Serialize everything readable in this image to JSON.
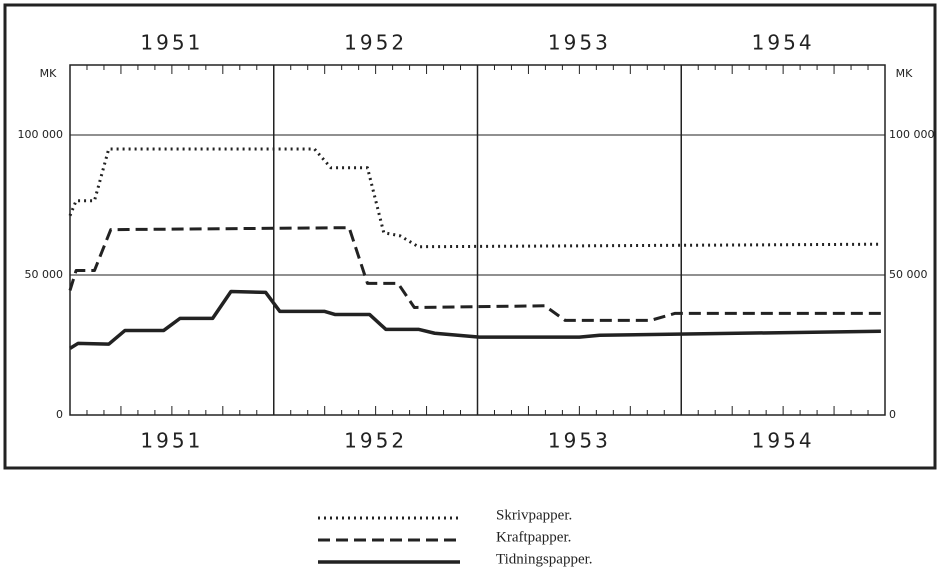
{
  "chart_data": {
    "type": "line",
    "ylabel": "MK",
    "y2label": "MK",
    "xlim": [
      1951,
      1955
    ],
    "xticks": [
      {
        "value": 1951.5,
        "label": "1951"
      },
      {
        "value": 1952.5,
        "label": "1952"
      },
      {
        "value": 1953.5,
        "label": "1953"
      },
      {
        "value": 1954.5,
        "label": "1954"
      }
    ],
    "x_dividers": [
      1952,
      1953,
      1954
    ],
    "ylim": [
      0,
      125000
    ],
    "yticks": [
      0,
      {
        "value": 50000,
        "label": "50 000"
      },
      {
        "value": 100000,
        "label": "100 000"
      }
    ],
    "y2lim": [
      0,
      125000
    ],
    "y2ticks": [
      0,
      {
        "value": 50000,
        "label": "50 000"
      },
      {
        "value": 100000,
        "label": "100 000"
      }
    ],
    "grid": true,
    "legend": "bottom",
    "series": [
      {
        "name": "Skrivpapper.",
        "color": "#222",
        "style": "dotted",
        "x": [
          1951.0,
          1951.03,
          1951.12,
          1951.19,
          1952.2,
          1952.28,
          1952.46,
          1952.54,
          1952.62,
          1952.71,
          1954.98
        ],
        "values": [
          71200,
          76500,
          76500,
          95000,
          95000,
          88300,
          88300,
          65100,
          64000,
          60100,
          61000
        ]
      },
      {
        "name": "Kraftpapper.",
        "color": "#222",
        "style": "dashed",
        "x": [
          1951.0,
          1951.03,
          1951.12,
          1951.2,
          1952.37,
          1952.46,
          1952.61,
          1952.69,
          1953.33,
          1953.43,
          1953.85,
          1953.97,
          1955.0
        ],
        "values": [
          44500,
          51600,
          51600,
          66200,
          66900,
          47000,
          47000,
          38400,
          39000,
          33800,
          33800,
          36300,
          36300
        ]
      },
      {
        "name": "Tidningspapper.",
        "color": "#222",
        "style": "solid",
        "x": [
          1951.0,
          1951.04,
          1951.19,
          1951.27,
          1951.46,
          1951.54,
          1951.7,
          1951.79,
          1951.96,
          1952.03,
          1952.25,
          1952.3,
          1952.47,
          1952.55,
          1952.71,
          1952.79,
          1953.01,
          1953.5,
          1953.6,
          1954.98
        ],
        "values": [
          23800,
          25600,
          25300,
          30200,
          30200,
          34500,
          34500,
          44100,
          43800,
          37000,
          37000,
          35900,
          35900,
          30600,
          30600,
          29200,
          27800,
          27800,
          28500,
          29900
        ]
      }
    ]
  }
}
